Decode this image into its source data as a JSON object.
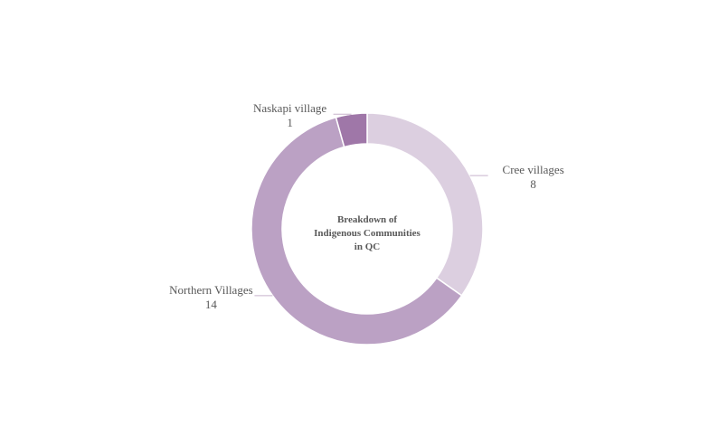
{
  "chart_data": {
    "type": "pie",
    "style": "donut",
    "center_title": [
      "Breakdown of",
      "Indigenous Communities",
      "in QC"
    ],
    "legend": "none",
    "slices": [
      {
        "name": "Cree villages",
        "value": 8,
        "color": "#dccfe0"
      },
      {
        "name": "Northern Villages",
        "value": 14,
        "color": "#bba1c4"
      },
      {
        "name": "Naskapi village",
        "value": 1,
        "color": "#9f77a8"
      }
    ]
  }
}
